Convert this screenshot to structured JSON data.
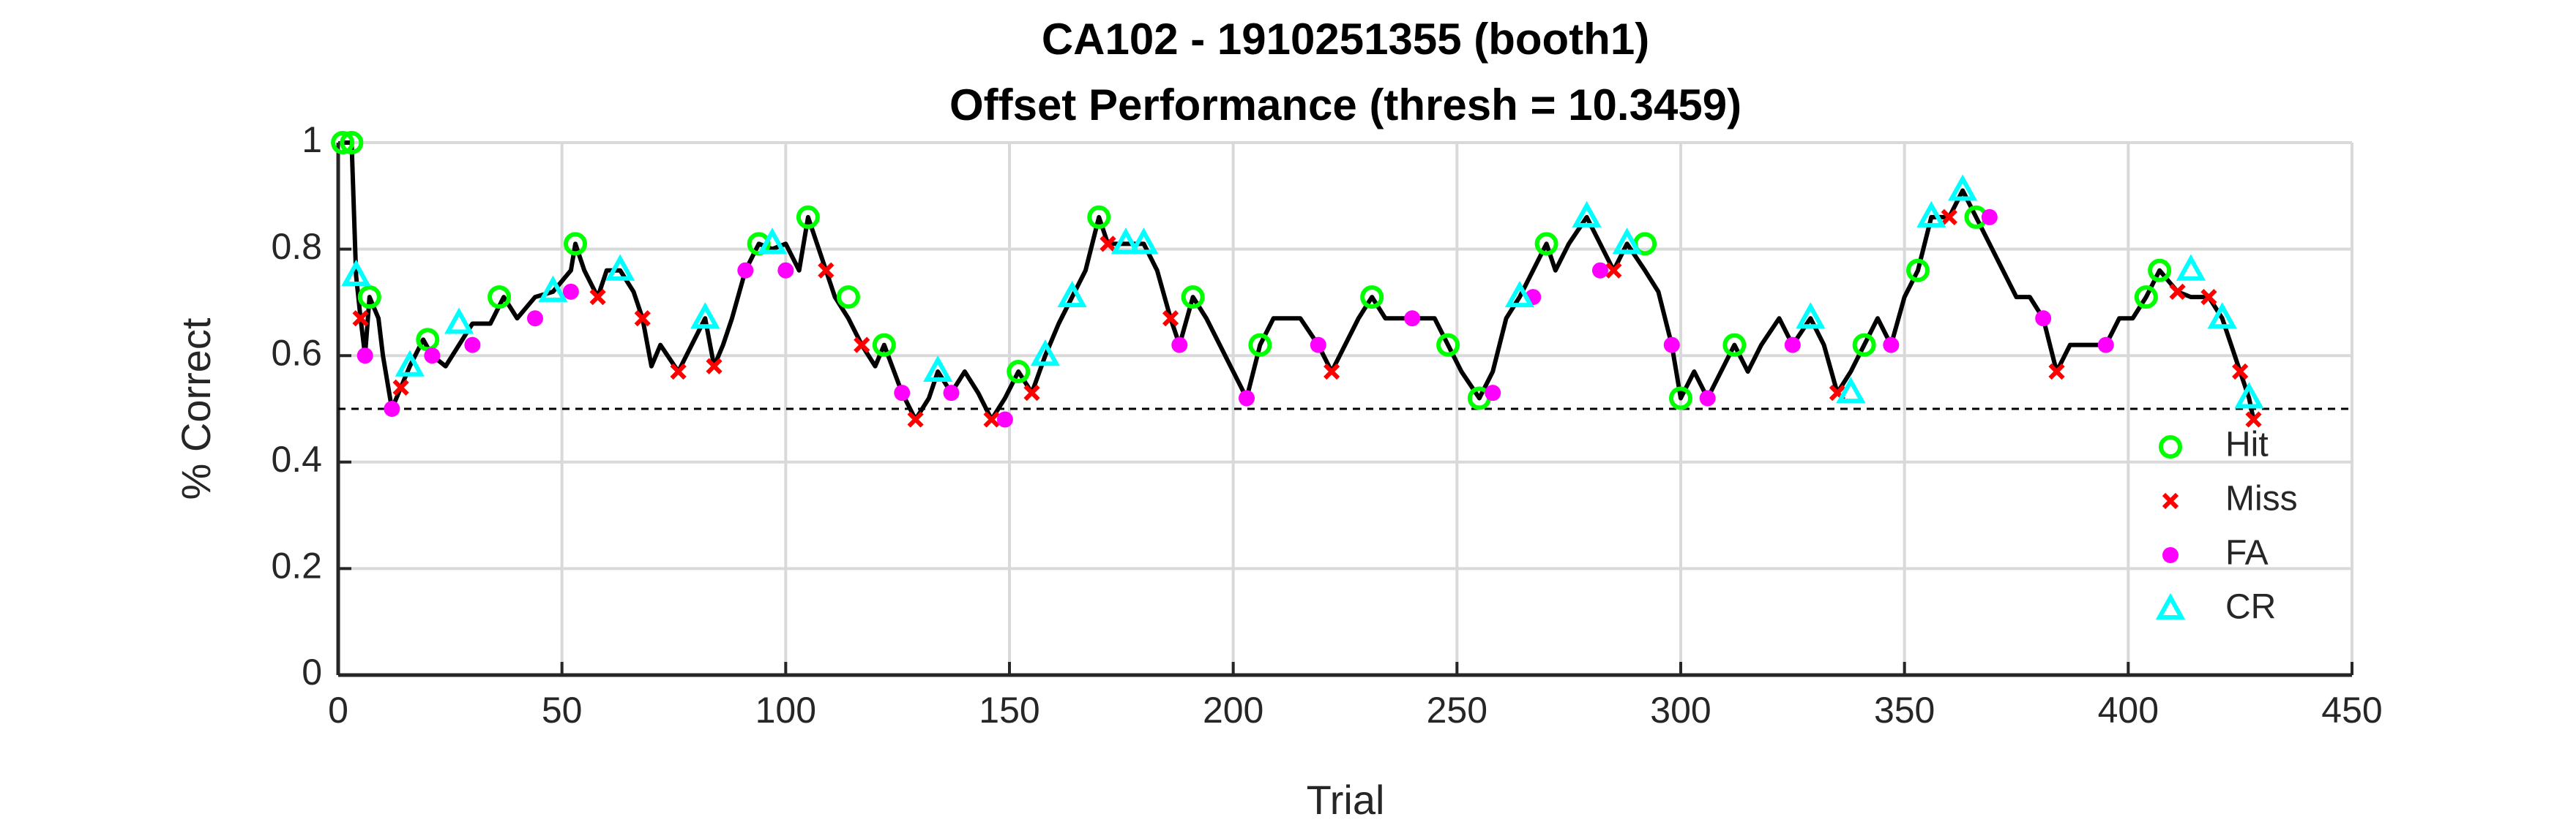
{
  "chart_data": {
    "type": "line",
    "title": "CA102 - 1910251355 (booth1)",
    "subtitle": "Offset Performance (thresh = 10.3459)",
    "x_label": "Trial",
    "y_label": "% Correct",
    "xlim": [
      0,
      450
    ],
    "xticks": [
      0,
      50,
      100,
      150,
      200,
      250,
      300,
      350,
      400,
      450
    ],
    "ylim": [
      0,
      1
    ],
    "yticks": [
      0,
      0.2,
      0.4,
      0.6,
      0.8,
      1
    ],
    "grid": true,
    "legend": "lower right",
    "reference_line": 0.5,
    "series": [
      {
        "color": "#000000",
        "marker": "none",
        "x": [
          1,
          3,
          4,
          5,
          6,
          7,
          9,
          10,
          12,
          14,
          16,
          19,
          21,
          24,
          27,
          30,
          34,
          37,
          40,
          44,
          48,
          52,
          53,
          55,
          58,
          60,
          63,
          66,
          68,
          70,
          72,
          76,
          79,
          82,
          84,
          86,
          88,
          91,
          94,
          97,
          100,
          103,
          105,
          107,
          109,
          111,
          114,
          117,
          120,
          122,
          126,
          129,
          132,
          134,
          137,
          140,
          143,
          146,
          149,
          152,
          155,
          158,
          161,
          164,
          167,
          170,
          172,
          176,
          180,
          183,
          186,
          188,
          191,
          194,
          197,
          200,
          203,
          206,
          209,
          215,
          219,
          222,
          225,
          228,
          231,
          234,
          240,
          245,
          248,
          251,
          255,
          258,
          261,
          264,
          267,
          270,
          272,
          275,
          279,
          282,
          285,
          288,
          292,
          295,
          298,
          300,
          303,
          306,
          309,
          312,
          315,
          318,
          322,
          325,
          329,
          332,
          335,
          338,
          341,
          344,
          347,
          350,
          353,
          356,
          360,
          363,
          366,
          369,
          372,
          375,
          378,
          381,
          384,
          387,
          391,
          395,
          398,
          401,
          404,
          407,
          411,
          414,
          418,
          421,
          423,
          425,
          427,
          428
        ],
        "values": [
          1,
          1,
          0.75,
          0.67,
          0.6,
          0.71,
          0.67,
          0.6,
          0.5,
          0.54,
          0.58,
          0.63,
          0.6,
          0.58,
          0.62,
          0.66,
          0.66,
          0.71,
          0.67,
          0.71,
          0.72,
          0.76,
          0.81,
          0.76,
          0.71,
          0.76,
          0.76,
          0.72,
          0.67,
          0.58,
          0.62,
          0.57,
          0.62,
          0.67,
          0.58,
          0.62,
          0.67,
          0.76,
          0.81,
          0.8,
          0.81,
          0.76,
          0.86,
          0.81,
          0.76,
          0.71,
          0.67,
          0.62,
          0.58,
          0.62,
          0.53,
          0.48,
          0.52,
          0.57,
          0.53,
          0.57,
          0.53,
          0.48,
          0.52,
          0.57,
          0.53,
          0.6,
          0.66,
          0.71,
          0.76,
          0.86,
          0.81,
          0.81,
          0.81,
          0.76,
          0.67,
          0.62,
          0.71,
          0.67,
          0.62,
          0.57,
          0.52,
          0.62,
          0.67,
          0.67,
          0.62,
          0.57,
          0.62,
          0.67,
          0.71,
          0.67,
          0.67,
          0.67,
          0.62,
          0.57,
          0.52,
          0.57,
          0.67,
          0.71,
          0.76,
          0.81,
          0.76,
          0.81,
          0.86,
          0.81,
          0.76,
          0.81,
          0.76,
          0.72,
          0.62,
          0.52,
          0.57,
          0.52,
          0.57,
          0.62,
          0.57,
          0.62,
          0.67,
          0.62,
          0.67,
          0.62,
          0.53,
          0.57,
          0.62,
          0.67,
          0.62,
          0.71,
          0.76,
          0.86,
          0.86,
          0.91,
          0.86,
          0.81,
          0.76,
          0.71,
          0.71,
          0.67,
          0.57,
          0.62,
          0.62,
          0.62,
          0.67,
          0.67,
          0.71,
          0.76,
          0.72,
          0.71,
          0.71,
          0.67,
          0.62,
          0.57,
          0.52,
          0.48
        ]
      },
      {
        "name": "Hit",
        "color": "#00ff00",
        "marker": "circle",
        "x": [
          1,
          3,
          7,
          20,
          36,
          53,
          94,
          105,
          114,
          122,
          152,
          170,
          191,
          206,
          231,
          248,
          255,
          270,
          292,
          300,
          312,
          341,
          353,
          366,
          404,
          407
        ],
        "values": [
          1,
          1,
          0.71,
          0.63,
          0.71,
          0.81,
          0.81,
          0.86,
          0.71,
          0.62,
          0.57,
          0.86,
          0.71,
          0.62,
          0.71,
          0.62,
          0.52,
          0.81,
          0.81,
          0.52,
          0.62,
          0.62,
          0.76,
          0.86,
          0.71,
          0.76
        ]
      },
      {
        "name": "Miss",
        "color": "#ff0000",
        "marker": "x",
        "x": [
          5,
          14,
          58,
          68,
          76,
          84,
          109,
          117,
          129,
          146,
          155,
          172,
          186,
          222,
          285,
          335,
          360,
          384,
          411,
          418,
          425,
          428
        ],
        "values": [
          0.67,
          0.54,
          0.71,
          0.67,
          0.57,
          0.58,
          0.76,
          0.62,
          0.48,
          0.48,
          0.53,
          0.81,
          0.67,
          0.57,
          0.76,
          0.53,
          0.86,
          0.57,
          0.72,
          0.71,
          0.57,
          0.48
        ]
      },
      {
        "name": "FA",
        "color": "#ff00ff",
        "marker": "dot",
        "x": [
          6,
          12,
          21,
          30,
          44,
          52,
          91,
          100,
          126,
          137,
          149,
          188,
          203,
          219,
          240,
          258,
          267,
          282,
          298,
          306,
          325,
          347,
          369,
          381,
          395
        ],
        "values": [
          0.6,
          0.5,
          0.6,
          0.62,
          0.67,
          0.72,
          0.76,
          0.76,
          0.53,
          0.53,
          0.48,
          0.62,
          0.52,
          0.62,
          0.67,
          0.53,
          0.71,
          0.76,
          0.62,
          0.52,
          0.62,
          0.62,
          0.86,
          0.67,
          0.62
        ]
      },
      {
        "name": "CR",
        "color": "#00ffff",
        "marker": "triangle",
        "x": [
          4,
          16,
          27,
          48,
          63,
          82,
          97,
          134,
          158,
          164,
          176,
          180,
          264,
          279,
          288,
          329,
          338,
          356,
          363,
          414,
          421,
          427
        ],
        "values": [
          0.75,
          0.58,
          0.66,
          0.72,
          0.76,
          0.67,
          0.81,
          0.57,
          0.6,
          0.71,
          0.81,
          0.81,
          0.71,
          0.86,
          0.81,
          0.67,
          0.53,
          0.86,
          0.91,
          0.76,
          0.67,
          0.52
        ]
      }
    ]
  }
}
